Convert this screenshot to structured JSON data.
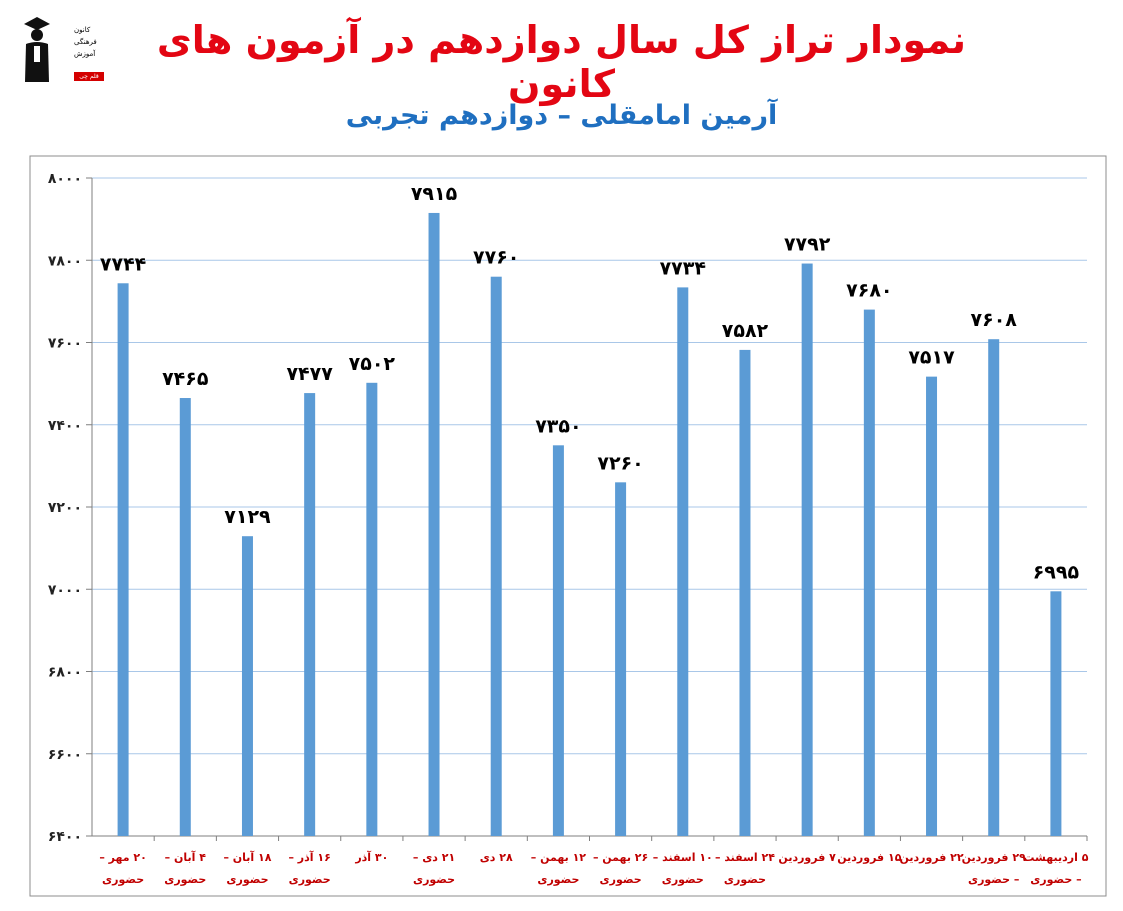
{
  "header": {
    "title": "نمودار تراز کل سال دوازدهم در آزمون های کانون",
    "subtitle": "آرمین امامقلی – دوازدهم تجربی"
  },
  "logo": {
    "line1": "کانون",
    "line2": "فرهنگی",
    "line3": "آموزش",
    "badge": "قلم چی"
  },
  "colors": {
    "title": "#e30613",
    "subtitle": "#1f6fc0",
    "bar": "#5b9bd5",
    "category_label": "#c00000",
    "grid": "#a9c7e8"
  },
  "chart_data": {
    "type": "bar",
    "ylim": [
      6400,
      8000
    ],
    "yticks": [
      "۶۴۰۰",
      "۶۶۰۰",
      "۶۸۰۰",
      "۷۰۰۰",
      "۷۲۰۰",
      "۷۴۰۰",
      "۷۶۰۰",
      "۷۸۰۰",
      "۸۰۰۰"
    ],
    "ytick_values": [
      6400,
      6600,
      6800,
      7000,
      7200,
      7400,
      7600,
      7800,
      8000
    ],
    "grid": true,
    "categories": [
      [
        "۲۰ مهر –",
        "حضوری"
      ],
      [
        "۴ آبان –",
        "حضوری"
      ],
      [
        "۱۸ آبان –",
        "حضوری"
      ],
      [
        "۱۶ آذر –",
        "حضوری"
      ],
      [
        "۳۰ آذر"
      ],
      [
        "۲۱ دی –",
        "حضوری"
      ],
      [
        "۲۸ دی"
      ],
      [
        "۱۲ بهمن –",
        "حضوری"
      ],
      [
        "۲۶ بهمن –",
        "حضوری"
      ],
      [
        "۱۰ اسفند –",
        "حضوری"
      ],
      [
        "۲۴ اسفند –",
        "حضوری"
      ],
      [
        "۷ فروردین"
      ],
      [
        "۱۵ فروردین"
      ],
      [
        "۲۲ فروردین"
      ],
      [
        "۲۹ فروردین",
        "– حضوری"
      ],
      [
        "۵ اردیبهشت",
        "– حضوری"
      ]
    ],
    "values": [
      7744,
      7465,
      7129,
      7477,
      7502,
      7915,
      7760,
      7350,
      7260,
      7734,
      7582,
      7792,
      7680,
      7517,
      7608,
      6995
    ],
    "data_labels": [
      "۷۷۴۴",
      "۷۴۶۵",
      "۷۱۲۹",
      "۷۴۷۷",
      "۷۵۰۲",
      "۷۹۱۵",
      "۷۷۶۰",
      "۷۳۵۰",
      "۷۲۶۰",
      "۷۷۳۴",
      "۷۵۸۲",
      "۷۷۹۲",
      "۷۶۸۰",
      "۷۵۱۷",
      "۷۶۰۸",
      "۶۹۹۵"
    ]
  }
}
